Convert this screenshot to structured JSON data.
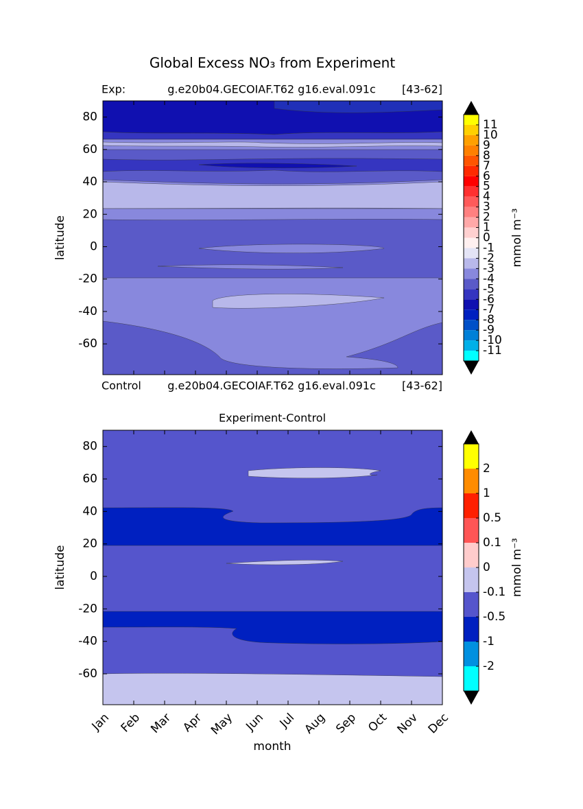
{
  "title": "Global Excess NO₃ from Experiment",
  "chart_data": [
    {
      "type": "contour",
      "subtitle_left": "Exp:",
      "subtitle_center": "g.e20b04.GECOIAF.T62 g16.eval.091c",
      "subtitle_right": "[43-62]",
      "footer_left": "Control",
      "footer_center": "g.e20b04.GECOIAF.T62 g16.eval.091c",
      "footer_right": "[43-62]",
      "ylabel": "latitude",
      "ylim": [
        -79,
        90
      ],
      "yticks": [
        80,
        60,
        40,
        20,
        0,
        -20,
        -40,
        -60
      ],
      "categories": [
        null,
        null,
        null,
        null,
        null,
        null,
        null,
        null,
        null,
        null,
        null,
        null
      ],
      "colorbar": {
        "label": "mmol m⁻³",
        "levels": [
          11,
          10,
          9,
          8,
          7,
          6,
          5,
          4,
          3,
          2,
          1,
          0,
          -1,
          -2,
          -3,
          -4,
          -5,
          -6,
          -7,
          -8,
          -9,
          -10,
          -11
        ],
        "colors": [
          "#ffff00",
          "#ffd000",
          "#ffa000",
          "#ff8000",
          "#ff5500",
          "#ff2a00",
          "#ff0000",
          "#ff3030",
          "#ff5a5a",
          "#ff8080",
          "#ffa8a8",
          "#ffd0d0",
          "#fff0f0",
          "#e4e4f6",
          "#b8b8ea",
          "#8888dd",
          "#5a5ac8",
          "#3535c0",
          "#1010b0",
          "#0020c0",
          "#0050c8",
          "#0080d8",
          "#00b0e8",
          "#00ffff"
        ]
      }
    },
    {
      "type": "contour",
      "title": "Experiment-Control",
      "ylabel": "latitude",
      "xlabel": "month",
      "ylim": [
        -79,
        90
      ],
      "yticks": [
        80,
        60,
        40,
        20,
        0,
        -20,
        -40,
        -60
      ],
      "categories": [
        "Jan",
        "Feb",
        "Mar",
        "Apr",
        "May",
        "Jun",
        "Jul",
        "Aug",
        "Sep",
        "Oct",
        "Nov",
        "Dec"
      ],
      "colorbar": {
        "label": "mmol m⁻³",
        "levels": [
          2,
          1,
          0.5,
          0.1,
          0,
          -0.1,
          -0.5,
          -1,
          -2
        ],
        "colors": [
          "#ffff00",
          "#ff8c00",
          "#ff2000",
          "#ff5555",
          "#ffcccc",
          "#c5c5ee",
          "#5555cc",
          "#0020c0",
          "#0090e0",
          "#00ffff"
        ]
      }
    }
  ]
}
